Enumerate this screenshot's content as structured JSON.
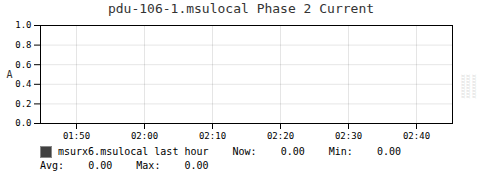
{
  "chart_data": {
    "type": "line",
    "title": "pdu-106-1.msulocal Phase 2 Current",
    "ylabel": "A",
    "categories": [
      "01:50",
      "02:00",
      "02:10",
      "02:20",
      "02:30",
      "02:40"
    ],
    "series": [
      {
        "name": "msurx6.msulocal last hour",
        "color": "#404040",
        "values": [
          0,
          0,
          0,
          0,
          0,
          0
        ]
      }
    ],
    "ylim": [
      0.0,
      1.0
    ],
    "yticks": [
      {
        "value": 0,
        "label": "0.0"
      },
      0.2,
      0.4,
      0.6,
      0.8,
      {
        "value": 1,
        "label": "1.0"
      }
    ],
    "grid": true,
    "annotations": [
      "Now:    0.00",
      "Min:    0.00",
      "Avg:    0.00    Max:    0.00",
      "XXXXXXXX\nXXXXXXXX\nXXXXXXXX"
    ]
  }
}
